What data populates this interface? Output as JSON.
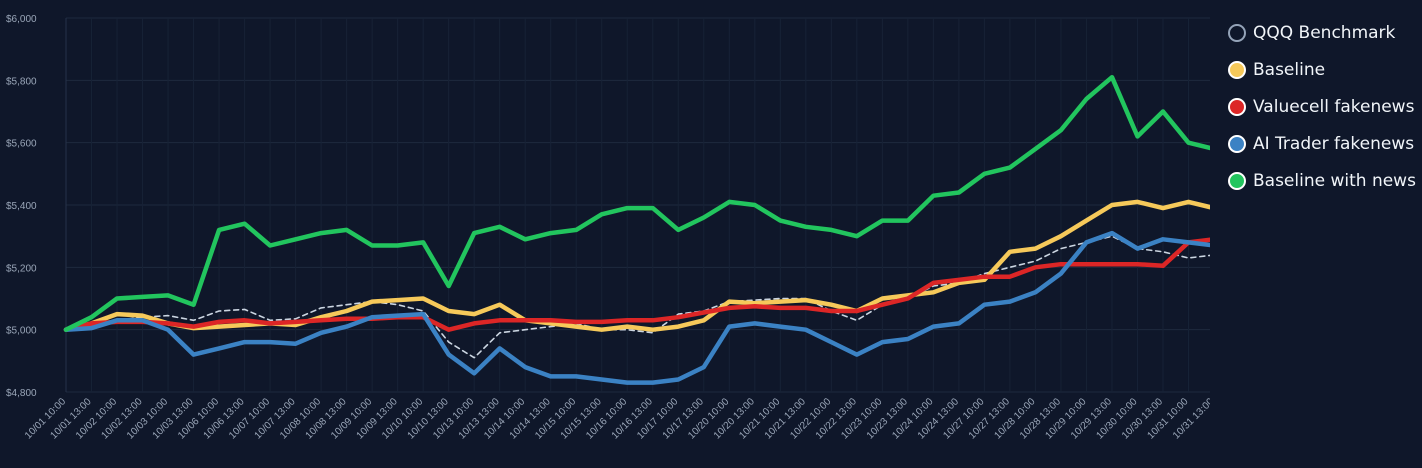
{
  "chart_data": {
    "type": "line",
    "title": "",
    "xlabel": "",
    "ylabel": "",
    "ylim": [
      4800,
      6000
    ],
    "yticks": [
      4800,
      5000,
      5200,
      5400,
      5600,
      5800,
      6000
    ],
    "ytick_labels": [
      "$4,800",
      "$5,000",
      "$5,200",
      "$5,400",
      "$5,600",
      "$5,800",
      "$6,000"
    ],
    "legend_position": "right",
    "categories": [
      "10/01 10:00",
      "10/01 13:00",
      "10/02 10:00",
      "10/02 13:00",
      "10/03 10:00",
      "10/03 13:00",
      "10/06 10:00",
      "10/06 13:00",
      "10/07 10:00",
      "10/07 13:00",
      "10/08 10:00",
      "10/08 13:00",
      "10/09 10:00",
      "10/09 13:00",
      "10/10 10:00",
      "10/10 13:00",
      "10/13 10:00",
      "10/13 13:00",
      "10/14 10:00",
      "10/14 13:00",
      "10/15 10:00",
      "10/15 13:00",
      "10/16 10:00",
      "10/16 13:00",
      "10/17 10:00",
      "10/17 13:00",
      "10/20 10:00",
      "10/20 13:00",
      "10/21 10:00",
      "10/21 13:00",
      "10/22 10:00",
      "10/22 13:00",
      "10/23 10:00",
      "10/23 13:00",
      "10/24 10:00",
      "10/24 13:00",
      "10/27 10:00",
      "10/27 13:00",
      "10/28 10:00",
      "10/28 13:00",
      "10/29 10:00",
      "10/29 13:00",
      "10/30 10:00",
      "10/30 13:00",
      "10/31 10:00",
      "10/31 13:00"
    ],
    "series": [
      {
        "name": "QQQ Benchmark",
        "color": "#cbd5e1",
        "style": "dashed",
        "values": [
          5000,
          5010,
          5030,
          5040,
          5045,
          5030,
          5060,
          5065,
          5030,
          5035,
          5070,
          5080,
          5090,
          5080,
          5060,
          4960,
          4910,
          4990,
          5000,
          5010,
          5020,
          5000,
          5000,
          4990,
          5050,
          5060,
          5090,
          5095,
          5100,
          5100,
          5060,
          5030,
          5080,
          5100,
          5140,
          5150,
          5180,
          5200,
          5220,
          5260,
          5280,
          5300,
          5260,
          5250,
          5230,
          5240
        ]
      },
      {
        "name": "Baseline",
        "color": "#f6c95a",
        "style": "solid",
        "values": [
          5000,
          5020,
          5050,
          5045,
          5020,
          5005,
          5010,
          5015,
          5020,
          5015,
          5040,
          5060,
          5090,
          5095,
          5100,
          5060,
          5050,
          5080,
          5030,
          5020,
          5010,
          5000,
          5010,
          5000,
          5010,
          5030,
          5090,
          5085,
          5090,
          5095,
          5080,
          5060,
          5100,
          5110,
          5120,
          5150,
          5160,
          5250,
          5260,
          5300,
          5350,
          5400,
          5410,
          5390,
          5410,
          5390
        ]
      },
      {
        "name": "Valuecell fakenews",
        "color": "#dc2626",
        "style": "solid",
        "values": [
          5000,
          5020,
          5025,
          5025,
          5020,
          5010,
          5025,
          5030,
          5020,
          5025,
          5030,
          5035,
          5035,
          5040,
          5040,
          5000,
          5020,
          5030,
          5030,
          5030,
          5025,
          5025,
          5030,
          5030,
          5040,
          5055,
          5070,
          5075,
          5070,
          5070,
          5060,
          5060,
          5080,
          5100,
          5150,
          5160,
          5170,
          5170,
          5200,
          5210,
          5210,
          5210,
          5210,
          5205,
          5280,
          5290
        ]
      },
      {
        "name": "AI Trader fakenews",
        "color": "#3b82c4",
        "style": "solid",
        "values": [
          5000,
          5005,
          5030,
          5030,
          5000,
          4920,
          4940,
          4960,
          4960,
          4955,
          4990,
          5010,
          5040,
          5045,
          5050,
          4920,
          4860,
          4940,
          4880,
          4850,
          4850,
          4840,
          4830,
          4830,
          4840,
          4880,
          5010,
          5020,
          5010,
          5000,
          4960,
          4920,
          4960,
          4970,
          5010,
          5020,
          5080,
          5090,
          5120,
          5180,
          5280,
          5310,
          5260,
          5290,
          5280,
          5270
        ]
      },
      {
        "name": "Baseline with news",
        "color": "#22c55e",
        "style": "solid",
        "values": [
          5000,
          5040,
          5100,
          5105,
          5110,
          5080,
          5320,
          5340,
          5270,
          5290,
          5310,
          5320,
          5270,
          5270,
          5280,
          5140,
          5310,
          5330,
          5290,
          5310,
          5320,
          5370,
          5390,
          5390,
          5320,
          5360,
          5410,
          5400,
          5350,
          5330,
          5320,
          5300,
          5350,
          5350,
          5430,
          5440,
          5500,
          5520,
          5580,
          5640,
          5740,
          5810,
          5620,
          5700,
          5600,
          5580
        ]
      }
    ]
  }
}
